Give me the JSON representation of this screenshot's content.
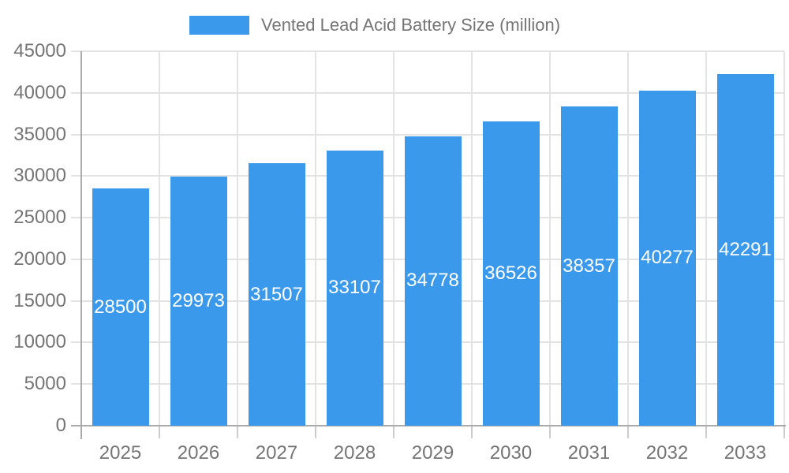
{
  "legend": {
    "label": "Vented Lead Acid Battery Size (million)"
  },
  "chart_data": {
    "type": "bar",
    "title": "",
    "categories": [
      "2025",
      "2026",
      "2027",
      "2028",
      "2029",
      "2030",
      "2031",
      "2032",
      "2033"
    ],
    "series": [
      {
        "name": "Vented Lead Acid Battery Size (million)",
        "values": [
          28500,
          29973,
          31507,
          33107,
          34778,
          36526,
          38357,
          40277,
          42291
        ]
      }
    ],
    "xlabel": "",
    "ylabel": "",
    "ylim": [
      0,
      45000
    ],
    "ytick_step": 5000,
    "grid": true,
    "legend_position": "top",
    "value_labels": "inside-center",
    "colors": {
      "bar": "#3B99EC",
      "value_label": "#FFFFFF",
      "axis_text": "#757575",
      "grid": "#E3E3E3",
      "axis_line": "#ABABAB",
      "tick": "#CDCDCD",
      "background": "#FFFFFF"
    }
  }
}
